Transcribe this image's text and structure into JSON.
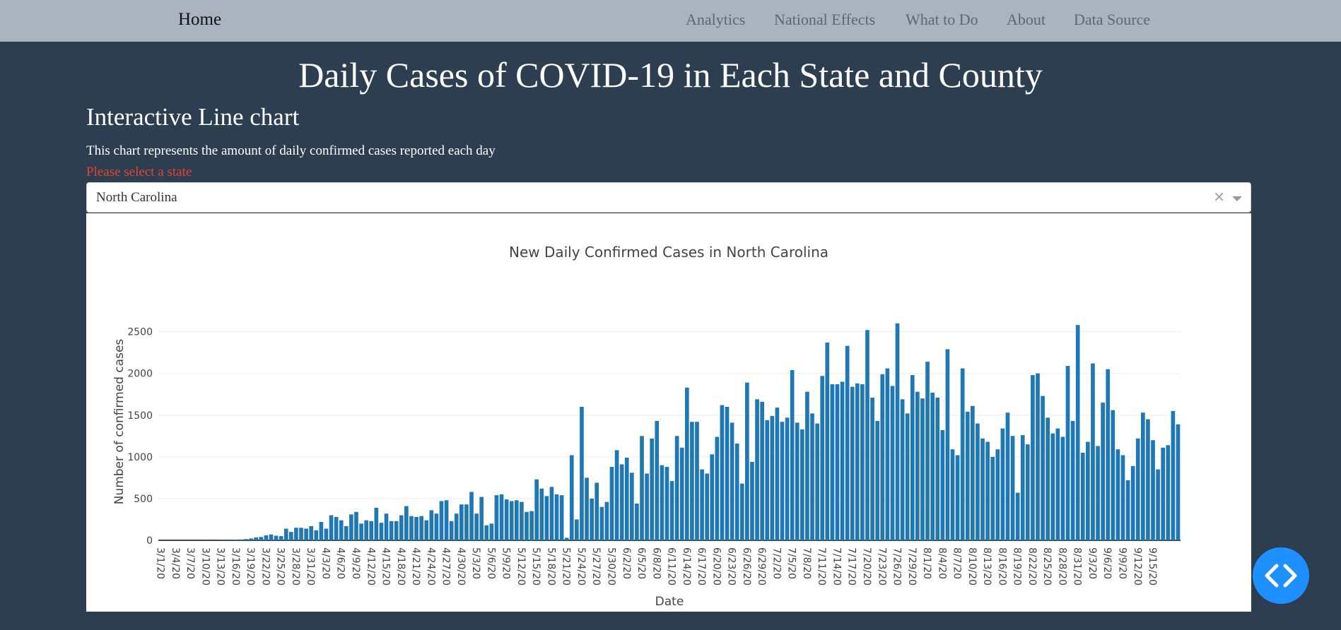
{
  "nav": {
    "home": "Home",
    "links": [
      "Analytics",
      "National Effects",
      "What to Do",
      "About",
      "Data Source"
    ]
  },
  "page": {
    "title": "Daily Cases of COVID-19 in Each State and County",
    "heading": "Interactive Line chart",
    "description": "This chart represents the amount of daily confirmed cases reported each day",
    "prompt": "Please select a state"
  },
  "select": {
    "value": "North Carolina",
    "clear_symbol": "×"
  },
  "fab": {
    "icon": "code-icon"
  },
  "colors": {
    "background": "#2c3e50",
    "navbar": "#aab4c0",
    "prompt": "#e8432e",
    "bar": "#1f77b4",
    "fab": "#1e90ff"
  },
  "chart_data": {
    "type": "bar",
    "title": "New Daily Confirmed Cases in North Carolina",
    "xlabel": "Date",
    "ylabel": "Number of confirmed cases",
    "ylim": [
      0,
      2700
    ],
    "yticks": [
      0,
      500,
      1000,
      1500,
      2000,
      2500
    ],
    "grid": true,
    "start_date": "3/1/20",
    "xtick_labels": [
      "3/1/20",
      "3/4/20",
      "3/7/20",
      "3/10/20",
      "3/13/20",
      "3/16/20",
      "3/19/20",
      "3/22/20",
      "3/25/20",
      "3/28/20",
      "3/31/20",
      "4/3/20",
      "4/6/20",
      "4/9/20",
      "4/12/20",
      "4/15/20",
      "4/18/20",
      "4/21/20",
      "4/24/20",
      "4/27/20",
      "4/30/20",
      "5/3/20",
      "5/6/20",
      "5/9/20",
      "5/12/20",
      "5/15/20",
      "5/18/20",
      "5/21/20",
      "5/24/20",
      "5/27/20",
      "5/30/20",
      "6/2/20",
      "6/5/20",
      "6/8/20",
      "6/11/20",
      "6/14/20",
      "6/17/20",
      "6/20/20",
      "6/23/20",
      "6/26/20",
      "6/29/20",
      "7/2/20",
      "7/5/20",
      "7/8/20",
      "7/11/20",
      "7/14/20",
      "7/17/20",
      "7/20/20",
      "7/23/20",
      "7/26/20",
      "7/29/20",
      "8/1/20",
      "8/4/20",
      "8/7/20",
      "8/10/20",
      "8/13/20",
      "8/16/20",
      "8/19/20",
      "8/22/20",
      "8/25/20",
      "8/28/20",
      "8/31/20",
      "9/3/20",
      "9/6/20",
      "9/9/20",
      "9/12/20",
      "9/15/20"
    ],
    "values": [
      0,
      0,
      0,
      0,
      0,
      0,
      0,
      0,
      0,
      2,
      0,
      3,
      3,
      5,
      5,
      8,
      10,
      15,
      22,
      35,
      40,
      60,
      70,
      55,
      50,
      140,
      100,
      150,
      150,
      140,
      170,
      120,
      220,
      140,
      300,
      280,
      240,
      170,
      310,
      340,
      200,
      240,
      230,
      390,
      210,
      320,
      230,
      230,
      300,
      410,
      290,
      280,
      290,
      240,
      360,
      320,
      470,
      480,
      230,
      320,
      430,
      430,
      580,
      320,
      520,
      180,
      200,
      540,
      550,
      490,
      470,
      480,
      460,
      340,
      350,
      730,
      620,
      530,
      640,
      550,
      540,
      30,
      1020,
      250,
      1600,
      750,
      500,
      690,
      400,
      460,
      880,
      1080,
      910,
      990,
      810,
      440,
      1250,
      800,
      1220,
      1430,
      900,
      880,
      710,
      1250,
      1110,
      1830,
      1420,
      1420,
      850,
      800,
      1030,
      1240,
      1620,
      1600,
      1410,
      1160,
      680,
      1890,
      940,
      1690,
      1660,
      1440,
      1490,
      1590,
      1420,
      1470,
      2040,
      1410,
      1330,
      1780,
      1520,
      1400,
      1970,
      2370,
      1870,
      1870,
      1900,
      2330,
      1840,
      1880,
      1870,
      2520,
      1710,
      1430,
      1990,
      2060,
      1850,
      2600,
      1690,
      1520,
      1980,
      1780,
      1700,
      2140,
      1770,
      1710,
      1320,
      2290,
      1090,
      1020,
      2060,
      1540,
      1610,
      1400,
      1220,
      1180,
      1000,
      1090,
      1340,
      1530,
      1250,
      570,
      1260,
      1150,
      1980,
      2000,
      1730,
      1470,
      1280,
      1340,
      1240,
      2090,
      1430,
      2580,
      1050,
      1180,
      2120,
      1130,
      1650,
      2050,
      1560,
      1090,
      1020,
      720,
      890,
      1220,
      1530,
      1450,
      1200,
      850,
      1110,
      1140,
      1550,
      1390
    ]
  }
}
